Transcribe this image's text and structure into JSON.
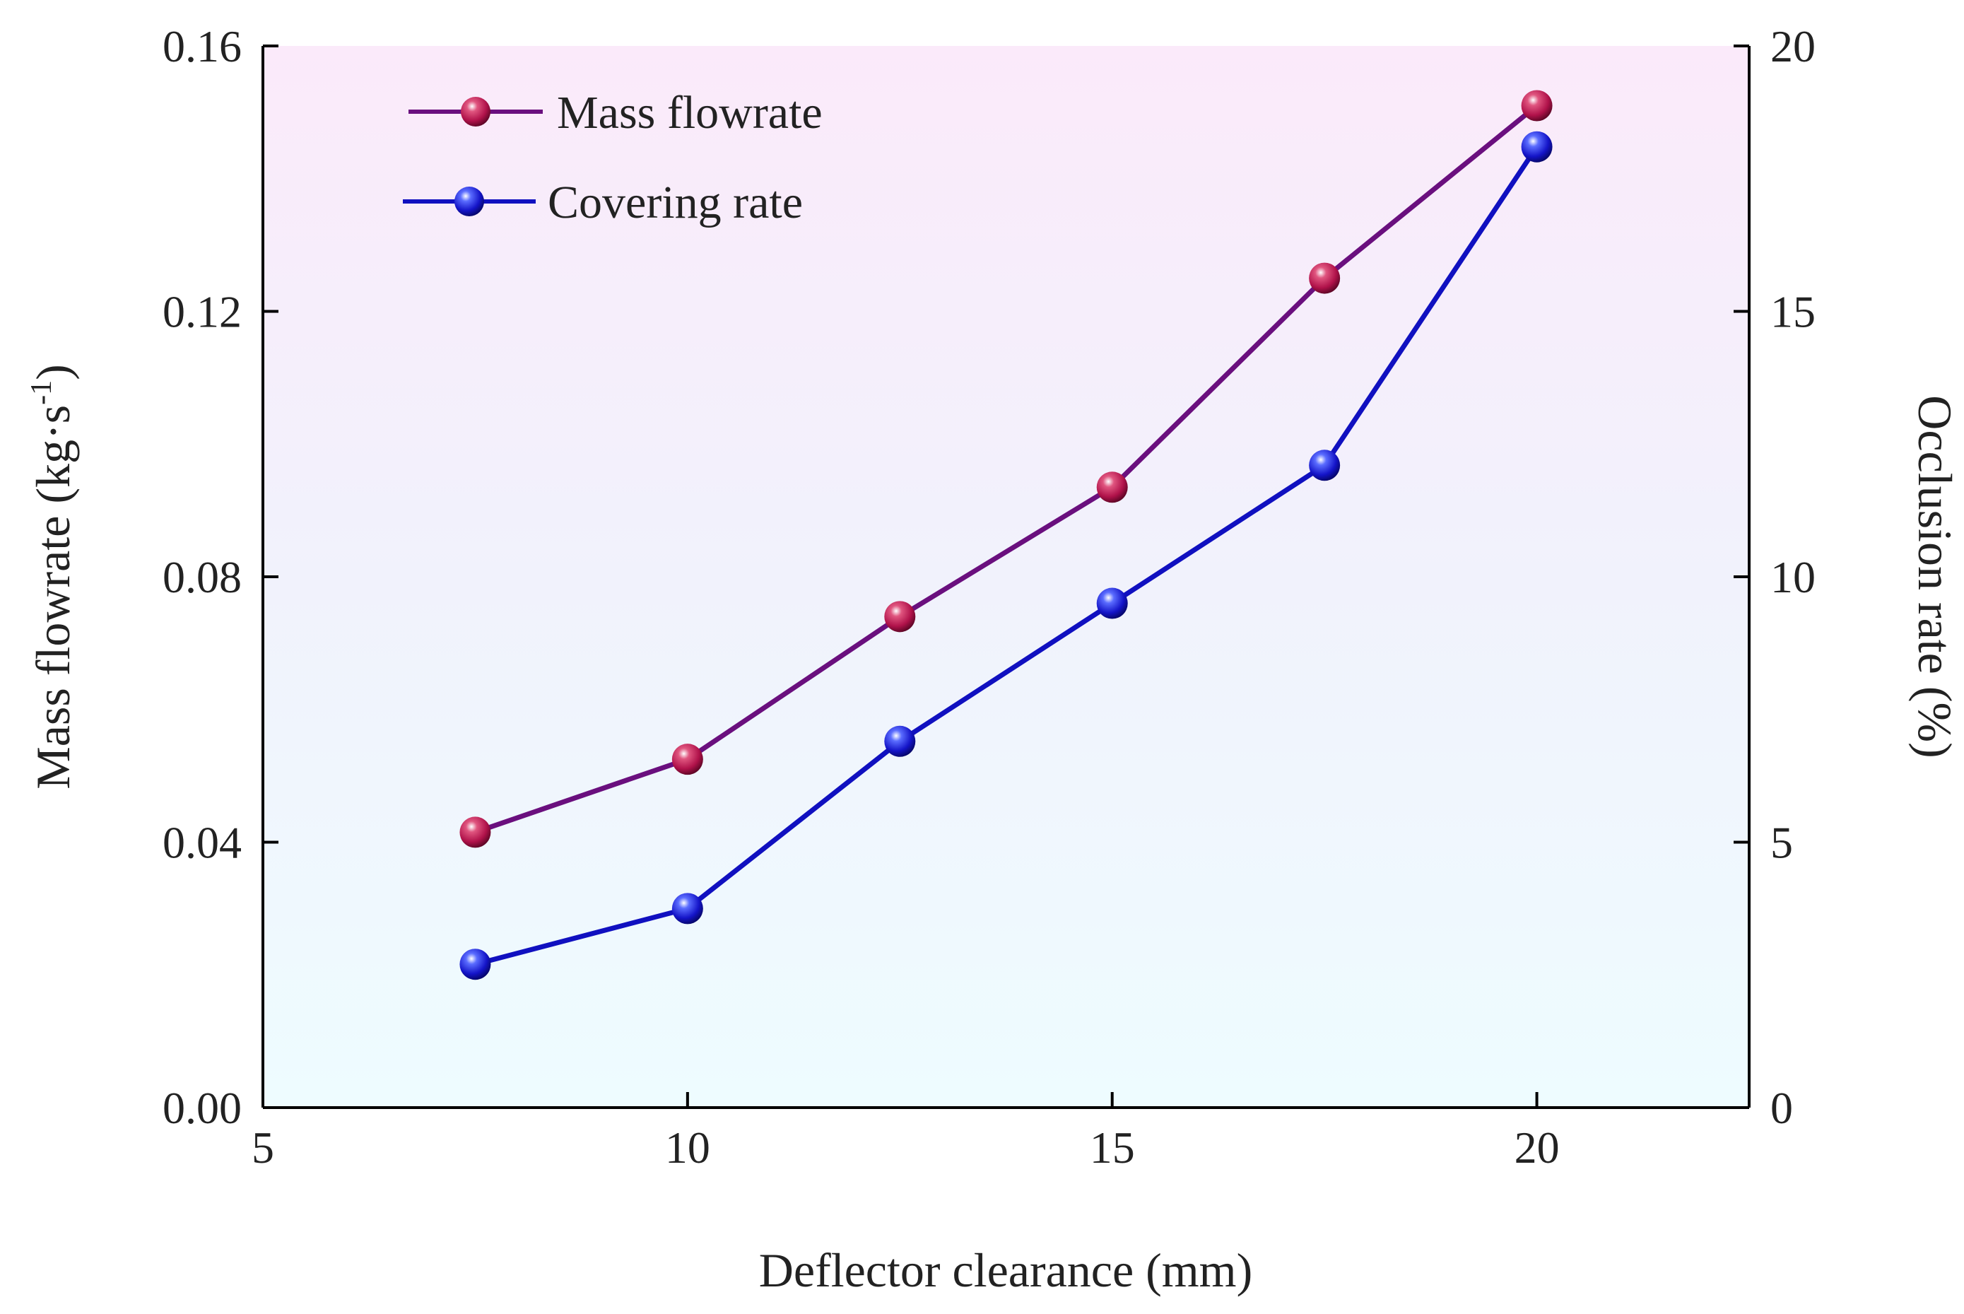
{
  "chart_data": {
    "type": "line",
    "title": "",
    "xlabel": "Deflector clearance (mm)",
    "ylabel_left": "Mass flowrate (kg·s",
    "ylabel_left_sup": "-1",
    "ylabel_left_close": ")",
    "ylabel_right": "Occlusion rate (%)",
    "xlim": [
      5,
      22.5
    ],
    "ylim_left": [
      0,
      0.16
    ],
    "ylim_right": [
      0,
      20
    ],
    "x_ticks": [
      5,
      10,
      15,
      20
    ],
    "x_tick_labels": [
      "5",
      "10",
      "15",
      "20"
    ],
    "y_left_ticks": [
      0,
      0.04,
      0.08,
      0.12,
      0.16
    ],
    "y_left_tick_labels": [
      "0.00",
      "0.04",
      "0.08",
      "0.12",
      "0.16"
    ],
    "y_right_ticks": [
      0,
      5,
      10,
      15,
      20
    ],
    "y_right_tick_labels": [
      "0",
      "5",
      "10",
      "15",
      "20"
    ],
    "legend_position": "top-left",
    "x": [
      7.5,
      10,
      12.5,
      15,
      17.5,
      20
    ],
    "series": [
      {
        "name": "Mass flowrate",
        "axis": "left",
        "line_color": "#6a0f7e",
        "marker_color": "#c2185b",
        "values": [
          0.0415,
          0.0525,
          0.074,
          0.0935,
          0.125,
          0.151
        ]
      },
      {
        "name": "Covering rate",
        "axis": "right",
        "line_color": "#1010c0",
        "marker_color": "#1a1ad0",
        "values": [
          2.7,
          3.75,
          6.9,
          9.5,
          12.1,
          18.1
        ]
      }
    ]
  }
}
